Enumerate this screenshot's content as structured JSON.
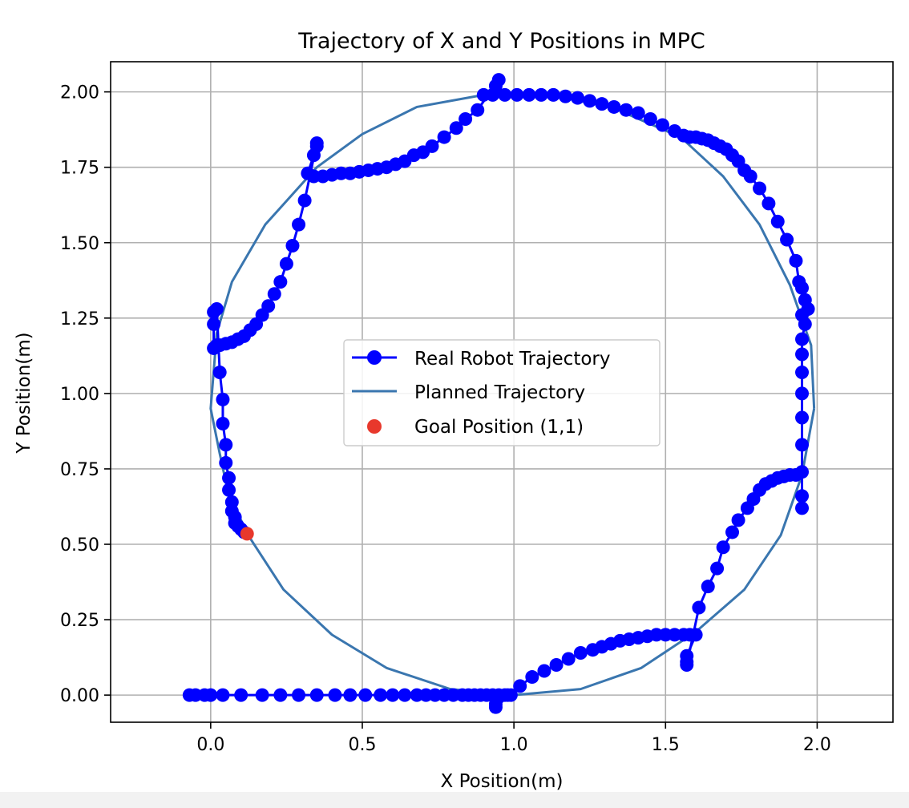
{
  "chart_data": {
    "type": "line",
    "title": "Trajectory of X and Y Positions in MPC",
    "xlabel": "X Position(m)",
    "ylabel": "Y Position(m)",
    "xlim": [
      -0.33,
      2.25
    ],
    "ylim": [
      -0.09,
      2.1
    ],
    "grid": true,
    "legend_position": "center",
    "x_ticks": [
      "0.0",
      "0.5",
      "1.0",
      "1.5",
      "2.0"
    ],
    "y_ticks": [
      "0.00",
      "0.25",
      "0.50",
      "0.75",
      "1.00",
      "1.25",
      "1.50",
      "1.75",
      "2.00"
    ],
    "series": [
      {
        "name": "Real Robot Trajectory",
        "color": "#0000ff",
        "style": "line-with-circle-markers",
        "points": [
          [
            -0.07,
            0.0
          ],
          [
            -0.05,
            0.0
          ],
          [
            -0.02,
            0.0
          ],
          [
            0.0,
            0.0
          ],
          [
            0.04,
            0.0
          ],
          [
            0.1,
            0.0
          ],
          [
            0.17,
            0.0
          ],
          [
            0.23,
            0.0
          ],
          [
            0.29,
            0.0
          ],
          [
            0.35,
            0.0
          ],
          [
            0.41,
            0.0
          ],
          [
            0.46,
            0.0
          ],
          [
            0.51,
            0.0
          ],
          [
            0.56,
            0.0
          ],
          [
            0.6,
            0.0
          ],
          [
            0.64,
            0.0
          ],
          [
            0.68,
            0.0
          ],
          [
            0.71,
            0.0
          ],
          [
            0.74,
            0.0
          ],
          [
            0.77,
            0.0
          ],
          [
            0.8,
            0.0
          ],
          [
            0.83,
            0.0
          ],
          [
            0.85,
            0.0
          ],
          [
            0.87,
            0.0
          ],
          [
            0.89,
            0.0
          ],
          [
            0.91,
            0.0
          ],
          [
            0.93,
            0.0
          ],
          [
            0.95,
            0.0
          ],
          [
            0.97,
            0.0
          ],
          [
            0.98,
            0.0
          ],
          [
            0.99,
            0.0
          ],
          [
            0.94,
            -0.03
          ],
          [
            0.94,
            -0.04
          ],
          [
            1.02,
            0.03
          ],
          [
            1.06,
            0.06
          ],
          [
            1.1,
            0.08
          ],
          [
            1.14,
            0.1
          ],
          [
            1.18,
            0.12
          ],
          [
            1.22,
            0.14
          ],
          [
            1.26,
            0.15
          ],
          [
            1.29,
            0.16
          ],
          [
            1.32,
            0.17
          ],
          [
            1.35,
            0.18
          ],
          [
            1.38,
            0.185
          ],
          [
            1.41,
            0.19
          ],
          [
            1.44,
            0.195
          ],
          [
            1.47,
            0.2
          ],
          [
            1.5,
            0.2
          ],
          [
            1.53,
            0.2
          ],
          [
            1.56,
            0.2
          ],
          [
            1.58,
            0.2
          ],
          [
            1.6,
            0.2
          ],
          [
            1.57,
            0.13
          ],
          [
            1.57,
            0.11
          ],
          [
            1.57,
            0.1
          ],
          [
            1.61,
            0.29
          ],
          [
            1.64,
            0.36
          ],
          [
            1.67,
            0.42
          ],
          [
            1.69,
            0.49
          ],
          [
            1.72,
            0.54
          ],
          [
            1.74,
            0.58
          ],
          [
            1.77,
            0.62
          ],
          [
            1.79,
            0.65
          ],
          [
            1.81,
            0.68
          ],
          [
            1.83,
            0.7
          ],
          [
            1.85,
            0.71
          ],
          [
            1.87,
            0.72
          ],
          [
            1.89,
            0.725
          ],
          [
            1.91,
            0.73
          ],
          [
            1.93,
            0.73
          ],
          [
            1.95,
            0.74
          ],
          [
            1.95,
            0.66
          ],
          [
            1.95,
            0.62
          ],
          [
            1.95,
            0.83
          ],
          [
            1.95,
            0.92
          ],
          [
            1.95,
            1.0
          ],
          [
            1.95,
            1.07
          ],
          [
            1.95,
            1.13
          ],
          [
            1.95,
            1.18
          ],
          [
            1.96,
            1.23
          ],
          [
            1.95,
            1.26
          ],
          [
            1.97,
            1.28
          ],
          [
            1.96,
            1.31
          ],
          [
            1.95,
            1.35
          ],
          [
            1.94,
            1.37
          ],
          [
            1.93,
            1.44
          ],
          [
            1.9,
            1.51
          ],
          [
            1.87,
            1.57
          ],
          [
            1.84,
            1.63
          ],
          [
            1.81,
            1.68
          ],
          [
            1.78,
            1.72
          ],
          [
            1.76,
            1.74
          ],
          [
            1.74,
            1.77
          ],
          [
            1.72,
            1.79
          ],
          [
            1.7,
            1.81
          ],
          [
            1.68,
            1.82
          ],
          [
            1.66,
            1.83
          ],
          [
            1.64,
            1.84
          ],
          [
            1.62,
            1.845
          ],
          [
            1.6,
            1.85
          ],
          [
            1.58,
            1.85
          ],
          [
            1.56,
            1.855
          ],
          [
            1.53,
            1.87
          ],
          [
            1.49,
            1.89
          ],
          [
            1.45,
            1.91
          ],
          [
            1.41,
            1.93
          ],
          [
            1.37,
            1.94
          ],
          [
            1.33,
            1.95
          ],
          [
            1.29,
            1.96
          ],
          [
            1.25,
            1.97
          ],
          [
            1.21,
            1.98
          ],
          [
            1.17,
            1.985
          ],
          [
            1.13,
            1.99
          ],
          [
            1.09,
            1.99
          ],
          [
            1.05,
            1.99
          ],
          [
            1.01,
            1.99
          ],
          [
            0.97,
            1.99
          ],
          [
            0.93,
            1.99
          ],
          [
            0.9,
            1.99
          ],
          [
            0.94,
            2.02
          ],
          [
            0.95,
            2.04
          ],
          [
            0.88,
            1.94
          ],
          [
            0.84,
            1.91
          ],
          [
            0.81,
            1.88
          ],
          [
            0.77,
            1.85
          ],
          [
            0.73,
            1.82
          ],
          [
            0.7,
            1.8
          ],
          [
            0.67,
            1.79
          ],
          [
            0.64,
            1.77
          ],
          [
            0.61,
            1.76
          ],
          [
            0.58,
            1.75
          ],
          [
            0.55,
            1.745
          ],
          [
            0.52,
            1.74
          ],
          [
            0.49,
            1.735
          ],
          [
            0.46,
            1.73
          ],
          [
            0.43,
            1.73
          ],
          [
            0.4,
            1.725
          ],
          [
            0.37,
            1.72
          ],
          [
            0.34,
            1.72
          ],
          [
            0.32,
            1.73
          ],
          [
            0.34,
            1.79
          ],
          [
            0.35,
            1.82
          ],
          [
            0.35,
            1.83
          ],
          [
            0.31,
            1.64
          ],
          [
            0.29,
            1.56
          ],
          [
            0.27,
            1.49
          ],
          [
            0.25,
            1.43
          ],
          [
            0.23,
            1.37
          ],
          [
            0.21,
            1.33
          ],
          [
            0.19,
            1.29
          ],
          [
            0.17,
            1.26
          ],
          [
            0.15,
            1.23
          ],
          [
            0.13,
            1.21
          ],
          [
            0.11,
            1.19
          ],
          [
            0.09,
            1.18
          ],
          [
            0.07,
            1.17
          ],
          [
            0.05,
            1.165
          ],
          [
            0.03,
            1.16
          ],
          [
            0.02,
            1.16
          ],
          [
            0.01,
            1.15
          ],
          [
            0.01,
            1.23
          ],
          [
            0.01,
            1.27
          ],
          [
            0.02,
            1.28
          ],
          [
            0.03,
            1.07
          ],
          [
            0.04,
            0.98
          ],
          [
            0.04,
            0.9
          ],
          [
            0.05,
            0.83
          ],
          [
            0.05,
            0.77
          ],
          [
            0.06,
            0.72
          ],
          [
            0.06,
            0.68
          ],
          [
            0.07,
            0.64
          ],
          [
            0.07,
            0.61
          ],
          [
            0.08,
            0.59
          ],
          [
            0.08,
            0.57
          ],
          [
            0.09,
            0.56
          ],
          [
            0.1,
            0.55
          ],
          [
            0.11,
            0.54
          ]
        ]
      },
      {
        "name": "Planned Trajectory",
        "color": "#3a76af",
        "style": "line",
        "points": [
          [
            1.99,
            0.95
          ],
          [
            1.98,
            1.16
          ],
          [
            1.91,
            1.36
          ],
          [
            1.81,
            1.56
          ],
          [
            1.69,
            1.72
          ],
          [
            1.55,
            1.85
          ],
          [
            1.32,
            1.95
          ],
          [
            1.11,
            1.99
          ],
          [
            0.9,
            1.99
          ],
          [
            0.68,
            1.95
          ],
          [
            0.5,
            1.86
          ],
          [
            0.35,
            1.75
          ],
          [
            0.18,
            1.56
          ],
          [
            0.07,
            1.37
          ],
          [
            0.02,
            1.2
          ],
          [
            0.0,
            0.95
          ],
          [
            0.03,
            0.8
          ],
          [
            0.06,
            0.66
          ],
          [
            0.13,
            0.52
          ],
          [
            0.24,
            0.35
          ],
          [
            0.4,
            0.2
          ],
          [
            0.58,
            0.09
          ],
          [
            0.79,
            0.02
          ],
          [
            1.0,
            0.0
          ],
          [
            1.22,
            0.02
          ],
          [
            1.42,
            0.09
          ],
          [
            1.6,
            0.21
          ],
          [
            1.76,
            0.35
          ],
          [
            1.88,
            0.53
          ],
          [
            1.95,
            0.73
          ],
          [
            1.99,
            0.95
          ]
        ]
      }
    ],
    "markers": [
      {
        "name": "Goal Position (1,1)",
        "color": "#e8382c",
        "x": 0.12,
        "y": 0.535
      }
    ]
  }
}
